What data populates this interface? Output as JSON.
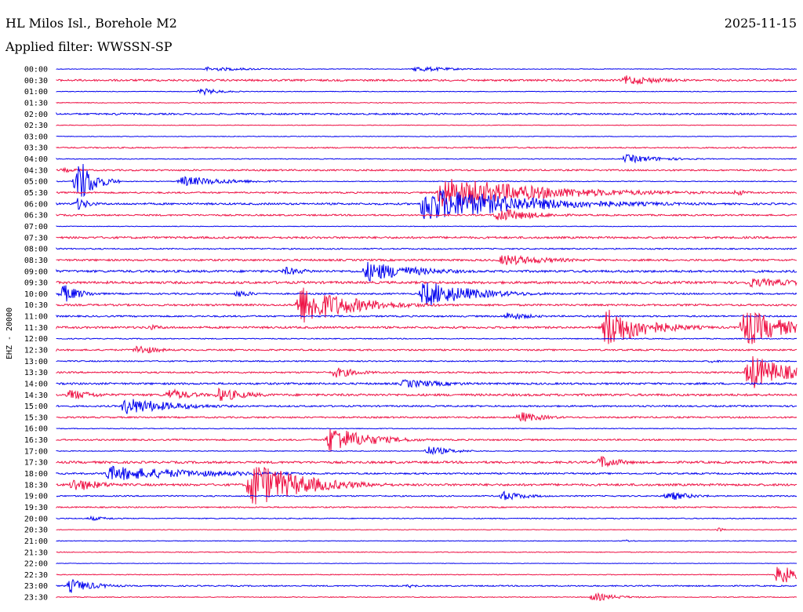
{
  "header": {
    "station": "HL Milos Isl., Borehole M2",
    "date": "2025-11-15",
    "filter": "Applied filter: WWSSN-SP"
  },
  "chart_data": {
    "type": "line",
    "title": "HL Milos Isl., Borehole M2",
    "ylabel": "EHZ - 20000",
    "colors": [
      "#0000ee",
      "#ee1144"
    ],
    "row_labels": [
      "00:00",
      "00:30",
      "01:00",
      "01:30",
      "02:00",
      "02:30",
      "03:00",
      "03:30",
      "04:00",
      "04:30",
      "05:00",
      "05:30",
      "06:00",
      "06:30",
      "07:00",
      "07:30",
      "08:00",
      "08:30",
      "09:00",
      "09:30",
      "10:00",
      "10:30",
      "11:00",
      "11:30",
      "12:00",
      "12:30",
      "13:00",
      "13:30",
      "14:00",
      "14:30",
      "15:00",
      "15:30",
      "16:00",
      "16:30",
      "17:00",
      "17:30",
      "18:00",
      "18:30",
      "19:00",
      "19:30",
      "20:00",
      "20:30",
      "21:00",
      "21:30",
      "22:00",
      "22:30",
      "23:00",
      "23:30"
    ],
    "row_minutes": 30,
    "noise": [
      0.4,
      1.2,
      0.4,
      0.5,
      1.0,
      0.4,
      0.4,
      0.8,
      0.5,
      1.0,
      0.5,
      1.0,
      1.2,
      1.0,
      0.4,
      1.3,
      0.8,
      1.2,
      1.4,
      1.5,
      1.0,
      1.2,
      1.0,
      1.3,
      0.6,
      1.0,
      0.8,
      1.0,
      1.2,
      1.4,
      1.0,
      1.0,
      0.5,
      1.0,
      0.5,
      1.4,
      1.0,
      1.4,
      0.8,
      0.8,
      0.6,
      0.4,
      0.4,
      0.5,
      0.3,
      0.5,
      0.8,
      0.5
    ],
    "events": [
      {
        "row": 0,
        "minute": 6.0,
        "amp": 3,
        "dur": 2.0
      },
      {
        "row": 0,
        "minute": 14.5,
        "amp": 4,
        "dur": 1.5
      },
      {
        "row": 1,
        "minute": 23.0,
        "amp": 7,
        "dur": 1.5
      },
      {
        "row": 2,
        "minute": 5.8,
        "amp": 5,
        "dur": 0.8
      },
      {
        "row": 4,
        "minute": 2.3,
        "amp": 2,
        "dur": 0.8
      },
      {
        "row": 8,
        "minute": 23.0,
        "amp": 6,
        "dur": 1.5
      },
      {
        "row": 9,
        "minute": 0.2,
        "amp": 3,
        "dur": 1.0
      },
      {
        "row": 10,
        "minute": 0.8,
        "amp": 38,
        "dur": 0.6
      },
      {
        "row": 10,
        "minute": 5.0,
        "amp": 7,
        "dur": 2.0
      },
      {
        "row": 11,
        "minute": 15.5,
        "amp": 22,
        "dur": 4.0
      },
      {
        "row": 11,
        "minute": 27.5,
        "amp": 6,
        "dur": 0.4
      },
      {
        "row": 12,
        "minute": 0.8,
        "amp": 10,
        "dur": 0.5
      },
      {
        "row": 12,
        "minute": 14.8,
        "amp": 24,
        "dur": 4.0
      },
      {
        "row": 13,
        "minute": 17.8,
        "amp": 10,
        "dur": 1.5
      },
      {
        "row": 17,
        "minute": 18.0,
        "amp": 8,
        "dur": 2.0
      },
      {
        "row": 18,
        "minute": 9.2,
        "amp": 6,
        "dur": 1.0
      },
      {
        "row": 18,
        "minute": 12.5,
        "amp": 14,
        "dur": 2.0
      },
      {
        "row": 18,
        "minute": 13.7,
        "amp": 10,
        "dur": 1.0
      },
      {
        "row": 19,
        "minute": 28.0,
        "amp": 6,
        "dur": 3.0
      },
      {
        "row": 20,
        "minute": 0.2,
        "amp": 14,
        "dur": 0.7
      },
      {
        "row": 20,
        "minute": 7.3,
        "amp": 6,
        "dur": 0.6
      },
      {
        "row": 20,
        "minute": 14.8,
        "amp": 18,
        "dur": 2.0
      },
      {
        "row": 21,
        "minute": 9.8,
        "amp": 28,
        "dur": 2.0
      },
      {
        "row": 22,
        "minute": 18.2,
        "amp": 6,
        "dur": 1.0
      },
      {
        "row": 23,
        "minute": 3.7,
        "amp": 4,
        "dur": 0.8
      },
      {
        "row": 23,
        "minute": 22.2,
        "amp": 30,
        "dur": 1.5
      },
      {
        "row": 23,
        "minute": 27.8,
        "amp": 28,
        "dur": 1.5
      },
      {
        "row": 25,
        "minute": 3.2,
        "amp": 8,
        "dur": 0.8
      },
      {
        "row": 26,
        "minute": 26.5,
        "amp": 3,
        "dur": 0.4
      },
      {
        "row": 27,
        "minute": 11.2,
        "amp": 8,
        "dur": 1.0
      },
      {
        "row": 27,
        "minute": 28.0,
        "amp": 26,
        "dur": 1.5
      },
      {
        "row": 28,
        "minute": 14.0,
        "amp": 6,
        "dur": 2.0
      },
      {
        "row": 29,
        "minute": 0.5,
        "amp": 8,
        "dur": 1.0
      },
      {
        "row": 29,
        "minute": 4.5,
        "amp": 9,
        "dur": 1.0
      },
      {
        "row": 29,
        "minute": 6.5,
        "amp": 10,
        "dur": 1.2
      },
      {
        "row": 30,
        "minute": 2.8,
        "amp": 6,
        "dur": 1.0
      },
      {
        "row": 30,
        "minute": 2.7,
        "amp": 12,
        "dur": 2.0
      },
      {
        "row": 31,
        "minute": 18.7,
        "amp": 8,
        "dur": 1.0
      },
      {
        "row": 33,
        "minute": 11.0,
        "amp": 20,
        "dur": 1.5
      },
      {
        "row": 34,
        "minute": 15.0,
        "amp": 7,
        "dur": 1.0
      },
      {
        "row": 35,
        "minute": 22.0,
        "amp": 10,
        "dur": 0.8
      },
      {
        "row": 36,
        "minute": 2.0,
        "amp": 10,
        "dur": 4.0
      },
      {
        "row": 37,
        "minute": 0.6,
        "amp": 10,
        "dur": 1.2
      },
      {
        "row": 37,
        "minute": 7.8,
        "amp": 34,
        "dur": 2.0
      },
      {
        "row": 38,
        "minute": 18.0,
        "amp": 7,
        "dur": 1.0
      },
      {
        "row": 38,
        "minute": 24.7,
        "amp": 7,
        "dur": 1.0
      },
      {
        "row": 40,
        "minute": 1.3,
        "amp": 3,
        "dur": 1.0
      },
      {
        "row": 41,
        "minute": 26.8,
        "amp": 4,
        "dur": 0.2
      },
      {
        "row": 42,
        "minute": 23.0,
        "amp": 2,
        "dur": 0.4
      },
      {
        "row": 45,
        "minute": 29.2,
        "amp": 16,
        "dur": 0.8
      },
      {
        "row": 46,
        "minute": 0.5,
        "amp": 10,
        "dur": 1.0
      },
      {
        "row": 46,
        "minute": 14.2,
        "amp": 3,
        "dur": 0.5
      },
      {
        "row": 47,
        "minute": 21.7,
        "amp": 6,
        "dur": 1.0
      }
    ]
  }
}
